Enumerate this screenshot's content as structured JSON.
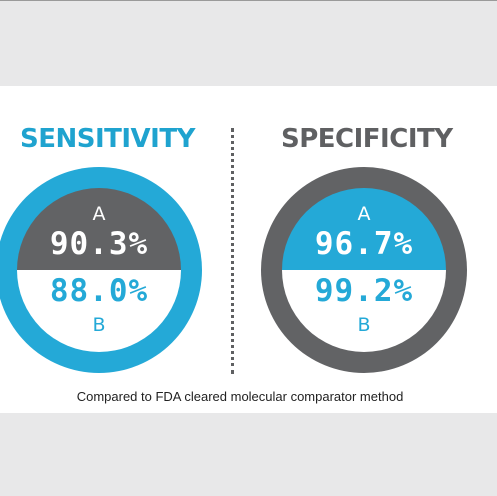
{
  "sensitivity": {
    "title": "SENSITIVITY",
    "top_letter": "A",
    "top_value": "90.3%",
    "bottom_value": "88.0%",
    "bottom_letter": "B"
  },
  "specificity": {
    "title": "SPECIFICITY",
    "top_letter": "A",
    "top_value": "96.7%",
    "bottom_value": "99.2%",
    "bottom_letter": "B"
  },
  "footnote": "Compared to FDA cleared molecular comparator method",
  "colors": {
    "accent_blue": "#24a9d7",
    "dark_gray": "#626365",
    "background": "#e8e8e9"
  }
}
